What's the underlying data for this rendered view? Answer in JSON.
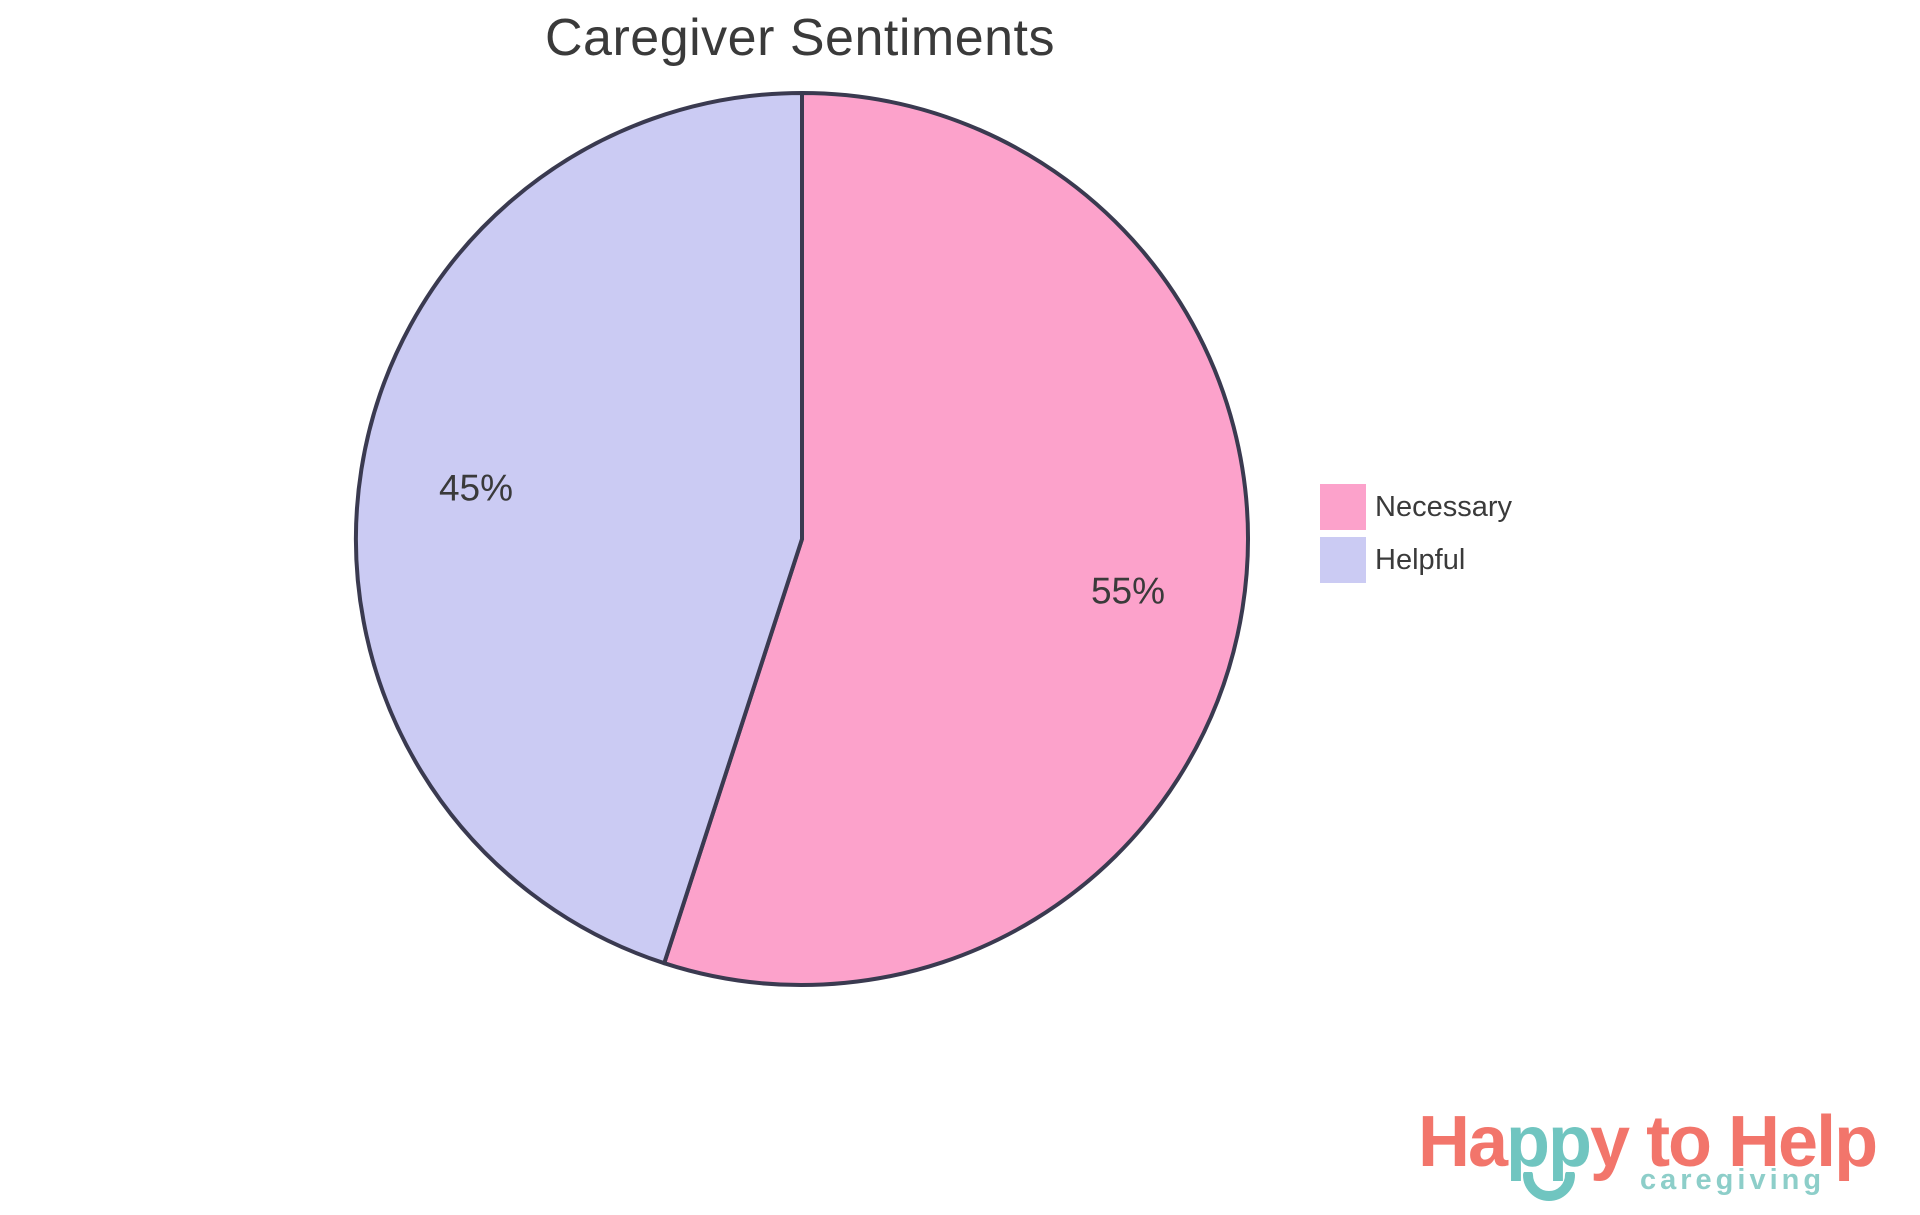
{
  "chart_data": {
    "type": "pie",
    "title": "Caregiver Sentiments",
    "labels": [
      "Necessary",
      "Helpful"
    ],
    "values": [
      55,
      45
    ],
    "slice_labels": [
      "55%",
      "45%"
    ],
    "colors": [
      "#FCA2CB",
      "#CBCBF3"
    ],
    "stroke_color": "#3A3A50",
    "stroke_width": 4,
    "start_angle": "12-o-clock",
    "direction": "clockwise",
    "label_color": "#3a3a3a",
    "title_color": "#3a3a3a",
    "legend_position": "right",
    "background": "#ffffff"
  },
  "legend": {
    "items": [
      {
        "label": "Necessary",
        "color": "#FCA2CB"
      },
      {
        "label": "Helpful",
        "color": "#CBCBF3"
      }
    ]
  },
  "logo": {
    "word_part1": "Ha",
    "word_part2": "pp",
    "word_part3": "y to Help",
    "subtitle": "caregiving",
    "coral": "#F2756B",
    "teal": "#70C5C0",
    "subtitle_color": "#8DCEC9"
  }
}
